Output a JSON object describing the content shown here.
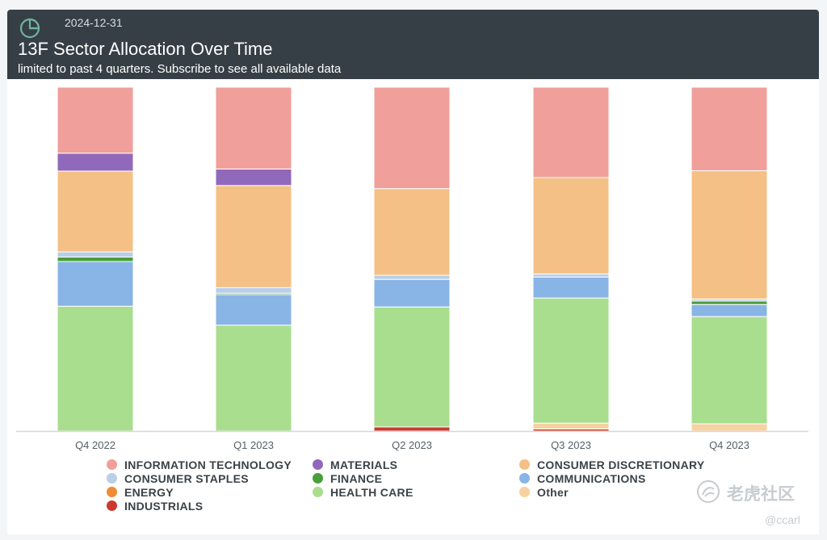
{
  "header": {
    "date": "2024-12-31",
    "title": "13F Sector Allocation Over Time",
    "subtitle": "limited to past 4 quarters. Subscribe to see all available data",
    "background": "#353f45",
    "icon": "pie-chart-icon"
  },
  "watermark": {
    "brand": "老虎社区",
    "user": "@ccarl",
    "icon": "tiger-logo-icon"
  },
  "chart_data": {
    "type": "bar",
    "stacked": true,
    "normalized": true,
    "unit": "percent of portfolio",
    "categories": [
      "Q4 2022",
      "Q1 2023",
      "Q2 2023",
      "Q3 2023",
      "Q4 2023"
    ],
    "ylim": [
      0,
      100
    ],
    "legend_position": "bottom",
    "grid": false,
    "series": [
      {
        "name": "INDUSTRIALS",
        "color": "#cc3a2f",
        "values": [
          0.0,
          0.0,
          1.2,
          0.6,
          0.0
        ]
      },
      {
        "name": "Other",
        "color": "#f7d1a0",
        "values": [
          0.0,
          0.0,
          0.0,
          1.7,
          2.1
        ]
      },
      {
        "name": "HEALTH CARE",
        "color": "#a9de8f",
        "values": [
          36.3,
          30.8,
          34.9,
          36.4,
          31.2
        ]
      },
      {
        "name": "ENERGY",
        "color": "#ef8c33",
        "values": [
          0.0,
          0.0,
          0.0,
          0.0,
          0.0
        ]
      },
      {
        "name": "COMMUNICATIONS",
        "color": "#89b4e6",
        "values": [
          13.0,
          8.9,
          8.0,
          6.1,
          3.5
        ]
      },
      {
        "name": "FINANCE",
        "color": "#4a9e3a",
        "values": [
          1.3,
          0.4,
          0.0,
          0.0,
          1.0
        ]
      },
      {
        "name": "CONSUMER STAPLES",
        "color": "#b9cee7",
        "values": [
          1.5,
          1.6,
          1.2,
          0.9,
          0.6
        ]
      },
      {
        "name": "CONSUMER DISCRETIONARY",
        "color": "#f5c085",
        "values": [
          23.5,
          29.7,
          25.2,
          28.0,
          37.3
        ]
      },
      {
        "name": "MATERIALS",
        "color": "#9169bb",
        "values": [
          5.2,
          4.8,
          0.0,
          0.0,
          0.0
        ]
      },
      {
        "name": "INFORMATION TECHNOLOGY",
        "color": "#f09f9a",
        "values": [
          19.2,
          23.8,
          29.5,
          26.3,
          24.3
        ]
      }
    ],
    "legend_order": [
      "INFORMATION TECHNOLOGY",
      "MATERIALS",
      "CONSUMER DISCRETIONARY",
      "CONSUMER STAPLES",
      "FINANCE",
      "COMMUNICATIONS",
      "ENERGY",
      "HEALTH CARE",
      "Other",
      "INDUSTRIALS"
    ]
  }
}
